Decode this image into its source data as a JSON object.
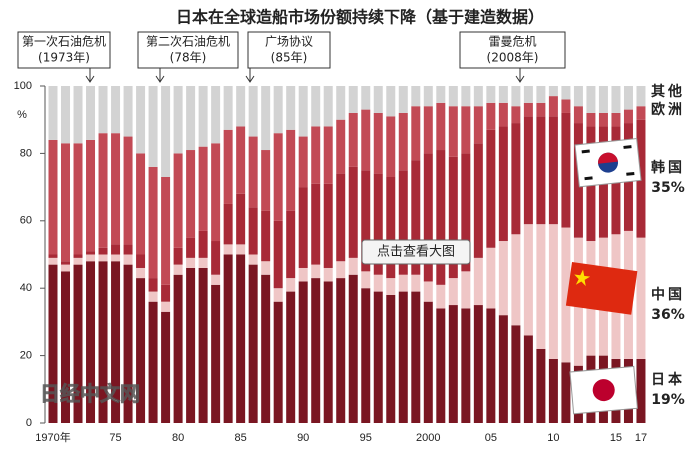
{
  "chart_data": {
    "type": "stacked-bar",
    "title": "日本在全球造船市场份额持续下降（基于建造数据）",
    "y_unit": "%",
    "categories": [
      "1970年",
      null,
      null,
      null,
      null,
      "75",
      null,
      null,
      null,
      null,
      "80",
      null,
      null,
      null,
      null,
      "85",
      null,
      null,
      null,
      null,
      "90",
      null,
      null,
      null,
      null,
      "95",
      null,
      null,
      null,
      null,
      "2000",
      null,
      null,
      null,
      null,
      "05",
      null,
      null,
      null,
      null,
      "10",
      null,
      null,
      null,
      null,
      "15",
      null,
      "17"
    ],
    "ylim": [
      0,
      100
    ],
    "yticks": [
      0,
      20,
      40,
      60,
      80,
      100
    ],
    "series": [
      {
        "name": "日本",
        "color": "#7a1622",
        "share": "19%",
        "values": [
          47,
          45,
          47,
          48,
          48,
          48,
          47,
          43,
          36,
          33,
          44,
          46,
          46,
          41,
          50,
          50,
          47,
          44,
          36,
          39,
          42,
          43,
          42,
          43,
          44,
          40,
          39,
          38,
          39,
          39,
          36,
          34,
          35,
          34,
          35,
          34,
          32,
          29,
          26,
          22,
          19,
          18,
          17,
          20,
          20,
          19,
          19,
          19
        ]
      },
      {
        "name": "中国",
        "color": "#efc6c6",
        "share": "36%",
        "values": [
          2,
          2,
          2,
          2,
          2,
          2,
          3,
          3,
          3,
          3,
          3,
          3,
          3,
          3,
          3,
          3,
          3,
          4,
          4,
          4,
          4,
          4,
          4,
          5,
          5,
          5,
          5,
          5,
          5,
          5,
          6,
          7,
          8,
          11,
          14,
          18,
          22,
          27,
          33,
          37,
          40,
          40,
          38,
          34,
          35,
          37,
          38,
          36
        ]
      },
      {
        "name": "韩国",
        "color": "#a82a37",
        "share": "35%",
        "values": [
          1,
          1,
          1,
          1,
          2,
          3,
          3,
          4,
          4,
          5,
          5,
          6,
          8,
          10,
          12,
          15,
          14,
          15,
          20,
          20,
          24,
          24,
          25,
          26,
          27,
          30,
          30,
          30,
          31,
          34,
          38,
          40,
          36,
          35,
          34,
          35,
          34,
          33,
          32,
          32,
          32,
          34,
          34,
          34,
          33,
          32,
          32,
          35
        ]
      },
      {
        "name": "欧洲",
        "color": "#c24a55",
        "values": [
          34,
          35,
          33,
          33,
          34,
          33,
          32,
          30,
          33,
          32,
          28,
          26,
          25,
          29,
          22,
          20,
          21,
          18,
          26,
          24,
          15,
          17,
          17,
          16,
          16,
          18,
          18,
          18,
          17,
          16,
          14,
          14,
          15,
          14,
          11,
          8,
          7,
          5,
          4,
          4,
          6,
          4,
          5,
          4,
          4,
          4,
          4,
          4
        ]
      },
      {
        "name": "其他",
        "color": "#d3d3d3",
        "values": [
          16,
          17,
          17,
          16,
          14,
          14,
          15,
          20,
          24,
          27,
          20,
          19,
          18,
          17,
          13,
          12,
          15,
          19,
          14,
          13,
          15,
          12,
          12,
          10,
          8,
          7,
          8,
          9,
          8,
          6,
          6,
          5,
          6,
          6,
          6,
          5,
          5,
          6,
          5,
          5,
          3,
          4,
          6,
          8,
          8,
          8,
          7,
          6
        ]
      }
    ],
    "annotations": [
      [
        "第一次石油危机",
        "(1973年)"
      ],
      [
        "第二次石油危机",
        "(78年)"
      ],
      [
        "广场协议",
        "(85年)"
      ],
      [
        "雷曼危机",
        "(2008年)"
      ]
    ],
    "watermark": "日经中文网",
    "button": "点击查看大图"
  }
}
